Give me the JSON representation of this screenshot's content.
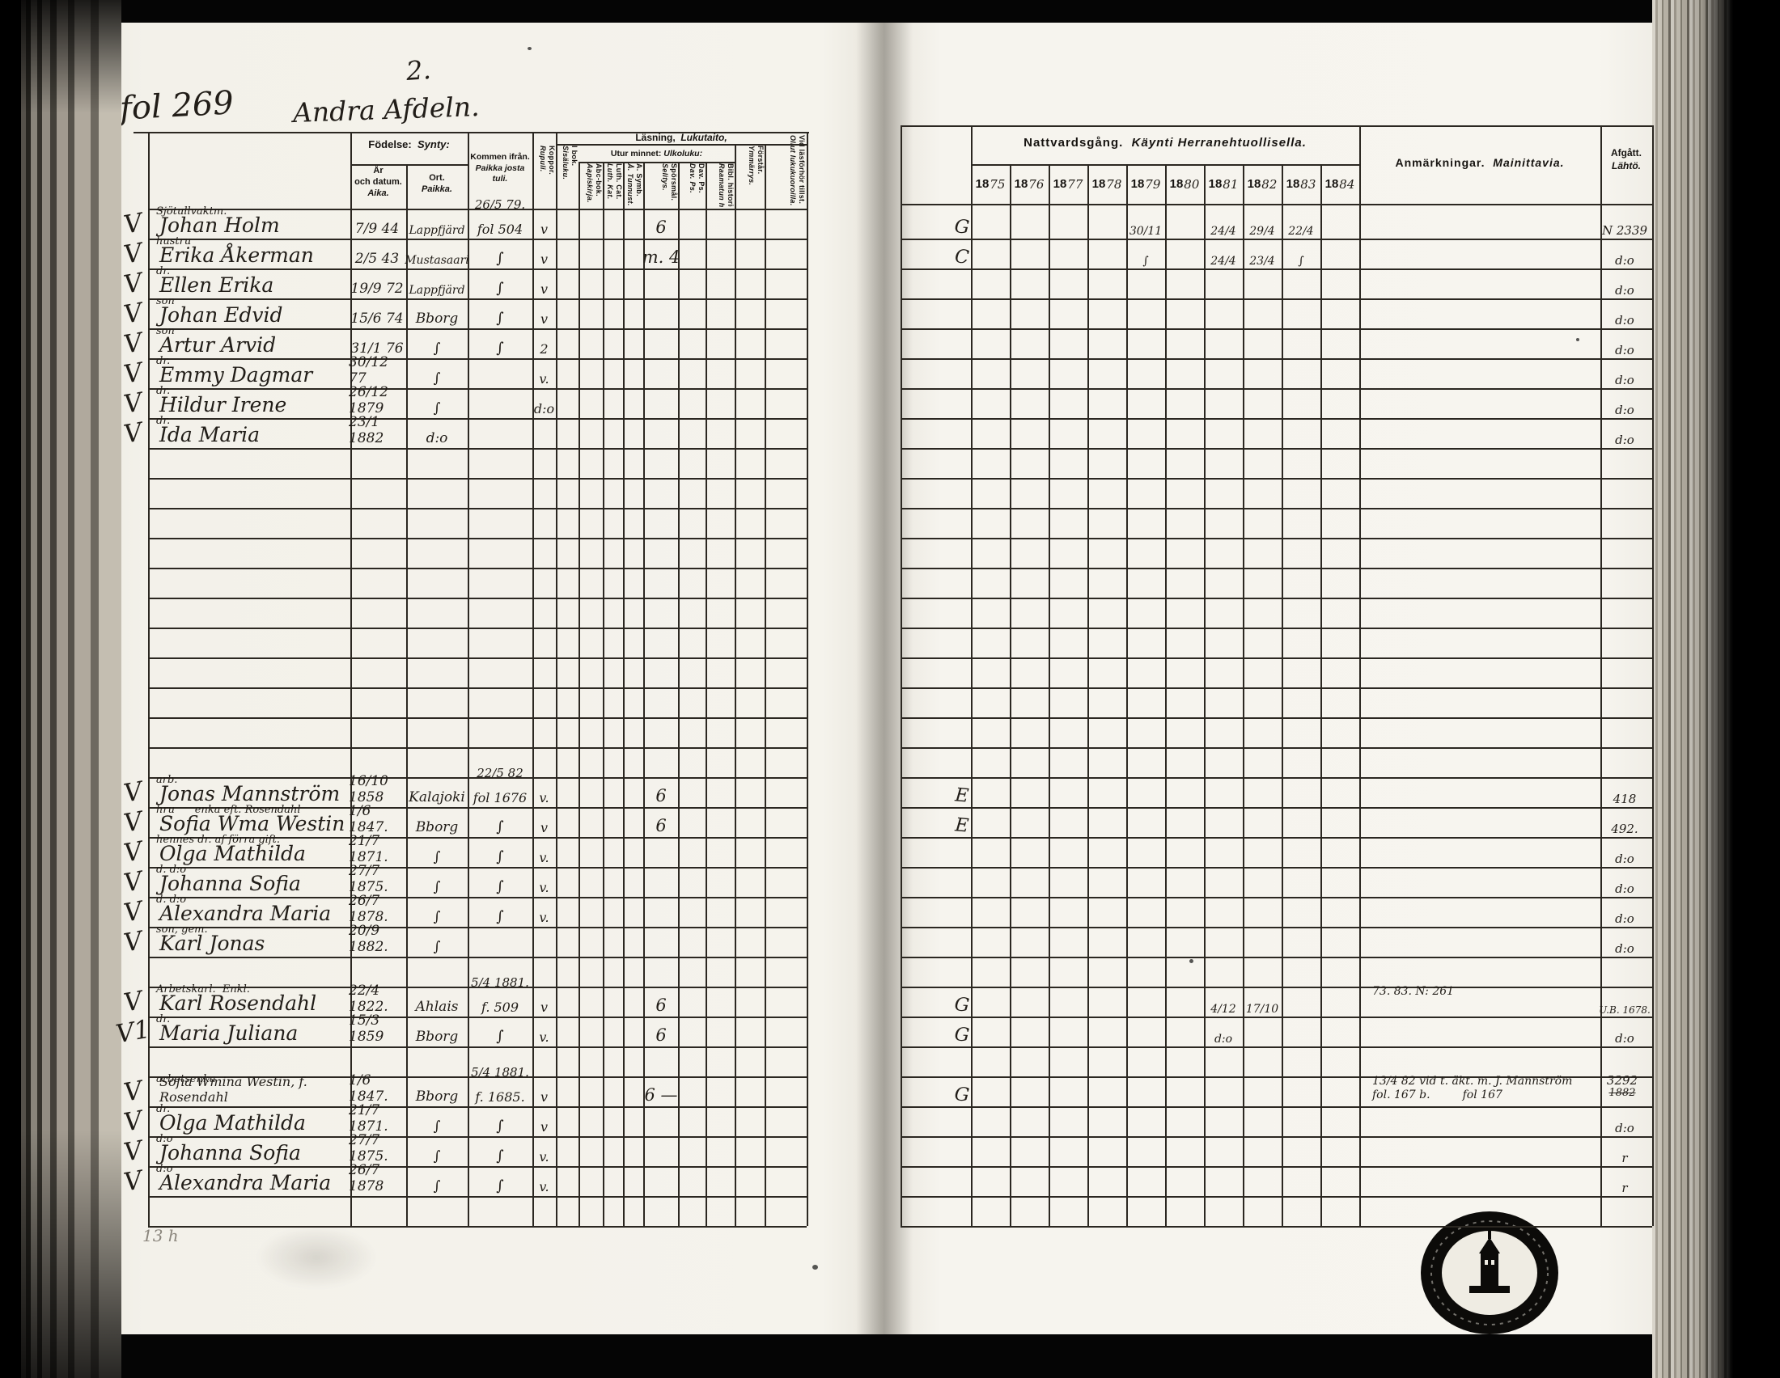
{
  "annotations": {
    "page_number": "2.",
    "folio": "fol 269",
    "section": "Andra Afdeln.",
    "pencil_note": "13 h"
  },
  "table": {
    "headers": {
      "fodelse_sv": "Födelse:",
      "fodelse_fi": "Synty:",
      "ar_1": "År",
      "ar_2": "och datum.",
      "ar_3": "Aika.",
      "ort_1": "Ort.",
      "ort_2": "Paikka.",
      "kommen_1": "Kommen ifrån.",
      "kommen_2": "Paikka josta",
      "kommen_3": "tuli.",
      "lasning_sv": "Läsning,",
      "lasning_fi": "Lukutaito,",
      "utur_sv": "Utur minnet:",
      "utur_fi": "Ulkoluku:",
      "koppor": {
        "sv": "Koppor.",
        "fi": "Rupuli."
      },
      "i_bok": {
        "sv": "I bok.",
        "fi": "Sisäluku."
      },
      "abc": {
        "sv": "Abc-bok.",
        "fi": "Aapiskirja."
      },
      "luth": {
        "sv": "Luth. Cat.",
        "fi": "Luth. Kat."
      },
      "symb": {
        "sv": "A. Symb.",
        "fi": "Å. Tunnust."
      },
      "sporsmal": {
        "sv": "Spörsmål.",
        "fi": "Selitys."
      },
      "davps": {
        "sv": "Dav. Ps.",
        "fi": "Dav. Ps."
      },
      "bibl": {
        "sv": "Bibl. historie.",
        "fi": "Raamatun hist."
      },
      "forstar": {
        "sv": "Förstår.",
        "fi": "Ymmärrys."
      },
      "vidlas": {
        "sv": "Vid läsförhör tillst.",
        "fi": "Ollut lukukuoroilla."
      },
      "nattvard_sv": "Nattvardsgång.",
      "nattvard_fi": "Käynti Herranehtuollisella.",
      "years": [
        "1875",
        "1876",
        "1877",
        "1878",
        "1879",
        "1880",
        "1881",
        "1882",
        "1883",
        "1884"
      ],
      "anm_sv": "Anmärkningar.",
      "anm_fi": "Mainittavia.",
      "afgatt_sv": "Afgått.",
      "afgatt_fi": "Lähtö."
    },
    "groups": [
      {
        "start": 0,
        "rows": [
          {
            "check": "V",
            "role": "Sjötullvaktm.",
            "name": "Johan Holm",
            "date": "7/9 44",
            "ort": "Lappfjärd",
            "from": "26/5 79.|fol 504",
            "koppor": "v",
            "sporsmal": "6",
            "gutter": "G",
            "years": {
              "4": "30/11",
              "6": "24/4",
              "7": "29/4",
              "8": "22/4"
            },
            "afg": "N 2339"
          },
          {
            "check": "V",
            "role": "hustru",
            "name": "Erika Åkerman",
            "date": "2/5 43",
            "ort": "Mustasaari",
            "from": "∫",
            "koppor": "v",
            "sporsmal": "m. 4",
            "gutter": "C",
            "years": {
              "4": "∫",
              "6": "24/4",
              "7": "23/4",
              "8": "∫"
            },
            "afg": "d:o"
          },
          {
            "check": "V",
            "role": "dr.",
            "name": "Ellen Erika",
            "date": "19/9 72",
            "ort": "Lappfjärd",
            "from": "∫",
            "koppor": "v",
            "afg": "d:o"
          },
          {
            "check": "V",
            "role": "son",
            "name": "Johan Edvid",
            "date": "15/6 74",
            "ort": "Bborg",
            "from": "∫",
            "koppor": "v",
            "afg": "d:o"
          },
          {
            "check": "V",
            "role": "son",
            "name": "Artur Arvid",
            "date": "31/1 76",
            "ort": "∫",
            "from": "∫",
            "koppor": "2",
            "afg": "d:o"
          },
          {
            "check": "V",
            "role": "dr.",
            "name": "Emmy Dagmar",
            "date": "30/12 77",
            "ort": "∫",
            "koppor": "v.",
            "afg": "d:o"
          },
          {
            "check": "V",
            "role": "dr.",
            "name": "Hildur Irene",
            "date": "26/12 1879",
            "ort": "∫",
            "koppor": "d:o",
            "afg": "d:o"
          },
          {
            "check": "V",
            "role": "dr.",
            "name": "Ida Maria",
            "date": "23/1 1882",
            "ort": "d:o",
            "afg": "d:o"
          }
        ]
      },
      {
        "start": 19,
        "rows": [
          {
            "check": "V",
            "role": "arb.",
            "name": "Jonas Mannström",
            "date": "16/10 1858",
            "ort": "Kalajoki",
            "from": "22/5 82|fol 1676",
            "koppor": "v.",
            "sporsmal": "6",
            "gutter": "E",
            "afg": "418"
          },
          {
            "check": "V",
            "role": "hru      enka eft. Rosendahl",
            "name": "Sofia Wma Westin",
            "date": "1/6 1847.",
            "ort": "Bborg",
            "from": "∫",
            "koppor": "v",
            "sporsmal": "6",
            "gutter": "E",
            "afg": "492."
          },
          {
            "check": "V",
            "role": "hennes dr. af förra gift.",
            "name": "Olga Mathilda",
            "date": "21/7 1871.",
            "ort": "∫",
            "from": "∫",
            "koppor": "v.",
            "afg": "d:o"
          },
          {
            "check": "V",
            "role": "d. d:o",
            "name": "Johanna Sofia",
            "date": "27/7 1875.",
            "ort": "∫",
            "from": "∫",
            "koppor": "v.",
            "afg": "d:o"
          },
          {
            "check": "V",
            "role": "d. d:o",
            "name": "Alexandra Maria",
            "date": "26/7 1878.",
            "ort": "∫",
            "from": "∫",
            "koppor": "v.",
            "afg": "d:o"
          },
          {
            "check": "V",
            "role": "son, gem.",
            "name": "Karl Jonas",
            "date": "20/9 1882.",
            "ort": "∫",
            "afg": "d:o"
          }
        ]
      },
      {
        "start": 26,
        "rows": [
          {
            "check": "V",
            "role": "Arbetskarl.  Enkl.",
            "name": "Karl Rosendahl",
            "date": "22/4 1822.",
            "ort": "Ahlais",
            "from": "5/4 1881.|f. 509",
            "koppor": "v",
            "sporsmal": "6",
            "gutter": "G",
            "years": {
              "6": "4/12",
              "7": "17/10"
            },
            "anm": "73. 83. N: 261",
            "afg": "U.B. 1678."
          },
          {
            "check": "V1",
            "role": "dr.",
            "name": "Maria Juliana",
            "date": "15/3 1859",
            "ort": "Bborg",
            "from": "∫",
            "koppor": "v.",
            "sporsmal": "6",
            "gutter": "G",
            "years": {
              "6": "d:o"
            },
            "afg": "d:o"
          }
        ]
      },
      {
        "start": 29,
        "rows": [
          {
            "check": "V",
            "role": "arbetsenka",
            "name": "Sofia Wmina Westin, f. Rosendahl",
            "date": "1/6 1847.",
            "ort": "Bborg",
            "from": "5/4 1881.|f. 1685.",
            "koppor": "v",
            "sporsmal": "6 —",
            "gutter": "G",
            "anm": "13/4 82 vid t. äkt. m. J. Mannström|fol. 167 b.         fol 167",
            "afg": "3292",
            "afg2": "1882"
          },
          {
            "check": "V",
            "role": "dr.",
            "name": "Olga Mathilda",
            "date": "21/7 1871.",
            "ort": "∫",
            "from": "∫",
            "koppor": "v",
            "afg": "d:o"
          },
          {
            "check": "V",
            "role": "d:o",
            "name": "Johanna Sofia",
            "date": "27/7 1875.",
            "ort": "∫",
            "from": "∫",
            "koppor": "v.",
            "afg": "r"
          },
          {
            "check": "V",
            "role": "d:o",
            "name": "Alexandra Maria",
            "date": "26/7 1878",
            "ort": "∫",
            "from": "∫",
            "koppor": "v.",
            "afg": "r"
          }
        ]
      }
    ]
  },
  "stamp": {
    "description": "circular archive stamp with tower emblem"
  }
}
